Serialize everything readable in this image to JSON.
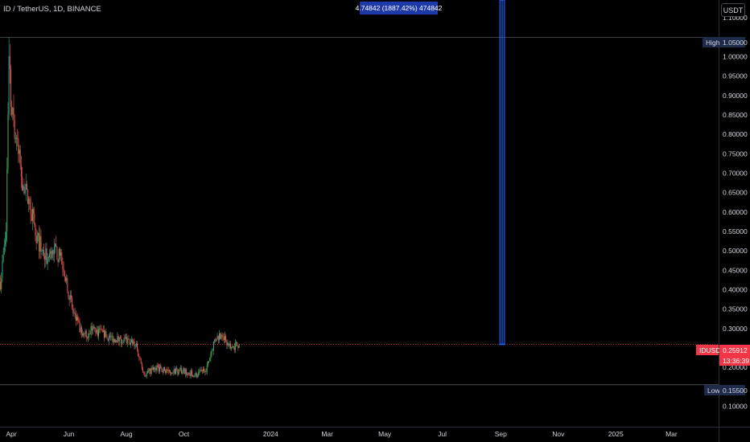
{
  "header": {
    "symbol_title": "ID / TetherUS, 1D, BINANCE",
    "currency_button": "USDT"
  },
  "measure_label": "4.74842 (1887.42%) 474842",
  "markers": {
    "high_name": "High",
    "high_value": "1.05000",
    "low_name": "Low",
    "low_value": "0.15500",
    "last_name": "IDUSDT",
    "last_value": "0.25912",
    "countdown": "13:36:39"
  },
  "colors": {
    "up": "#26a69a",
    "up_bright": "#4caf50",
    "down": "#ef5350",
    "measure": "#2962ff",
    "last_price": "#f23645",
    "hl_line": "#787b86"
  },
  "chart_data": {
    "type": "candlestick",
    "title": "ID / TetherUS, 1D, BINANCE",
    "y_axis": {
      "ticks": [
        0.1,
        0.15,
        0.2,
        0.25,
        0.3,
        0.35,
        0.4,
        0.45,
        0.5,
        0.55,
        0.6,
        0.65,
        0.7,
        0.75,
        0.8,
        0.85,
        0.9,
        0.95,
        1.0,
        1.05,
        1.1
      ],
      "labels": [
        "0.10000",
        "0.15000",
        "0.20000",
        "0.25000",
        "0.30000",
        "0.35000",
        "0.40000",
        "0.45000",
        "0.50000",
        "0.55000",
        "0.60000",
        "0.65000",
        "0.70000",
        "0.75000",
        "0.80000",
        "0.85000",
        "0.90000",
        "0.95000",
        "1.00000",
        "1.05000",
        "1.10000"
      ],
      "hidden_labels": [
        "0.15000",
        "0.25000",
        "1.05000"
      ],
      "range": [
        0.047,
        1.146
      ]
    },
    "x_axis": {
      "ticks": [
        "2023-04-01",
        "2023-06-01",
        "2023-08-01",
        "2023-10-01",
        "2024-01-01",
        "2024-03-01",
        "2024-05-01",
        "2024-07-01",
        "2024-09-01",
        "2024-11-01",
        "2025-01-01",
        "2025-03-01"
      ],
      "labels": [
        "Apr",
        "Jun",
        "Aug",
        "Oct",
        "2024",
        "Mar",
        "May",
        "Jul",
        "Sep",
        "Nov",
        "2025",
        "Mar"
      ],
      "range": [
        "2023-03-20",
        "2025-04-20"
      ]
    },
    "high": 1.05,
    "low": 0.155,
    "last_price": 0.25912,
    "price_path": [
      {
        "date": "2023-03-20",
        "price": 0.42
      },
      {
        "date": "2023-03-26",
        "price": 0.55
      },
      {
        "date": "2023-03-29",
        "price": 1.02
      },
      {
        "date": "2023-04-01",
        "price": 0.85
      },
      {
        "date": "2023-04-05",
        "price": 0.8
      },
      {
        "date": "2023-04-12",
        "price": 0.68
      },
      {
        "date": "2023-04-20",
        "price": 0.62
      },
      {
        "date": "2023-04-28",
        "price": 0.53
      },
      {
        "date": "2023-05-08",
        "price": 0.48
      },
      {
        "date": "2023-05-18",
        "price": 0.5
      },
      {
        "date": "2023-05-26",
        "price": 0.46
      },
      {
        "date": "2023-06-05",
        "price": 0.34
      },
      {
        "date": "2023-06-15",
        "price": 0.28
      },
      {
        "date": "2023-06-25",
        "price": 0.3
      },
      {
        "date": "2023-07-10",
        "price": 0.28
      },
      {
        "date": "2023-07-25",
        "price": 0.27
      },
      {
        "date": "2023-08-10",
        "price": 0.26
      },
      {
        "date": "2023-08-20",
        "price": 0.18
      },
      {
        "date": "2023-09-01",
        "price": 0.2
      },
      {
        "date": "2023-09-15",
        "price": 0.19
      },
      {
        "date": "2023-10-01",
        "price": 0.19
      },
      {
        "date": "2023-10-15",
        "price": 0.18
      },
      {
        "date": "2023-10-25",
        "price": 0.2
      },
      {
        "date": "2023-11-02",
        "price": 0.27
      },
      {
        "date": "2023-11-10",
        "price": 0.29
      },
      {
        "date": "2023-11-18",
        "price": 0.25
      },
      {
        "date": "2023-11-28",
        "price": 0.26
      }
    ],
    "measure_tool": {
      "date_start": "2024-08-31",
      "date_end": "2024-09-05",
      "price_from": 0.25912,
      "price_to": 1.146
    }
  }
}
